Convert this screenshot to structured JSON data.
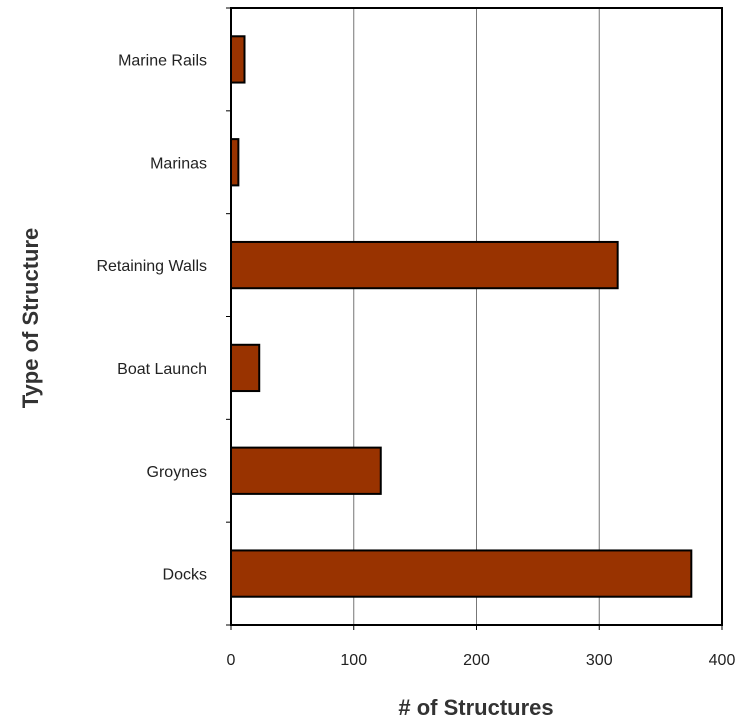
{
  "chart_data": {
    "type": "bar",
    "orientation": "horizontal",
    "title": "",
    "xlabel": "# of Structures",
    "ylabel": "Type of Structure",
    "categories": [
      "Marine Rails",
      "Marinas",
      "Retaining Walls",
      "Boat Launch",
      "Groynes",
      "Docks"
    ],
    "values": [
      11,
      6,
      315,
      23,
      122,
      375
    ],
    "xlim": [
      0,
      400
    ],
    "xticks": [
      0,
      100,
      200,
      300,
      400
    ],
    "xtick_labels": [
      "0",
      "100",
      "200",
      "300",
      "400"
    ],
    "grid": "vertical",
    "legend": "none",
    "colors": {
      "bar_fill": "#993300",
      "bar_stroke": "#000000",
      "grid": "#777777"
    }
  }
}
